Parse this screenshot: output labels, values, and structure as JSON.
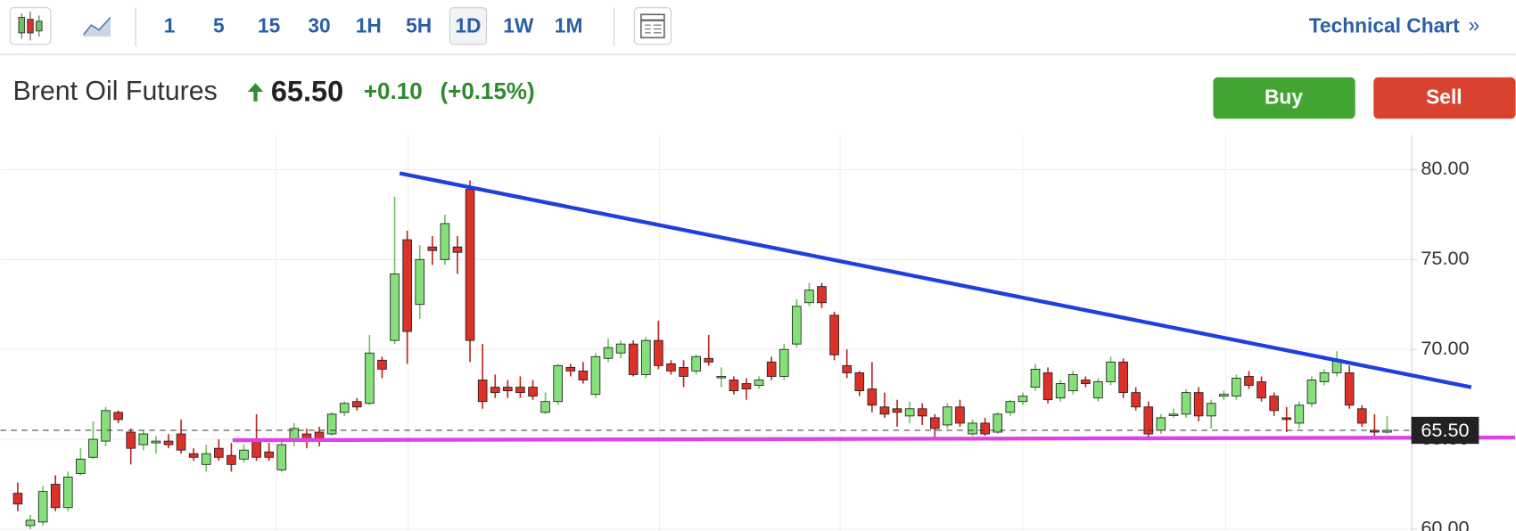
{
  "toolbar": {
    "intervals": [
      "1",
      "5",
      "15",
      "30",
      "1H",
      "5H",
      "1D",
      "1W",
      "1M"
    ],
    "active_interval": "1D",
    "technical_chart": "Technical Chart",
    "chevron": "»"
  },
  "header": {
    "name": "Brent Oil Futures",
    "price": "65.50",
    "change": "+0.10",
    "change_pct": "(+0.15%)",
    "buy": "Buy",
    "sell": "Sell"
  },
  "chart_data": {
    "type": "candlestick",
    "up_color": "#86e07a",
    "down_color": "#dc3128",
    "ylim": [
      59.9,
      81.65
    ],
    "yticks": [
      {
        "value": 60,
        "label": "60.00"
      },
      {
        "value": 65,
        "label": "65.00"
      },
      {
        "value": 70,
        "label": "70.00"
      },
      {
        "value": 75,
        "label": "75.00"
      },
      {
        "value": 80,
        "label": "80.00"
      }
    ],
    "grid": true,
    "last_price": {
      "value": 65.5,
      "label": "65.50"
    },
    "trendlines": [
      {
        "color": "#1f3fe0",
        "x": [
          30.4,
          115.7
        ],
        "y": [
          79.8,
          67.9
        ]
      },
      {
        "color": "#e040e8",
        "x": [
          17.1,
          119.2
        ],
        "y": [
          64.95,
          65.1
        ]
      }
    ],
    "ohlc": [
      [
        62.0,
        62.6,
        61.0,
        61.4
      ],
      [
        60.2,
        60.8,
        60.0,
        60.5
      ],
      [
        60.4,
        62.4,
        60.2,
        62.1
      ],
      [
        62.5,
        63.0,
        61.0,
        61.2
      ],
      [
        61.2,
        63.2,
        61.0,
        62.9
      ],
      [
        63.1,
        64.5,
        63.0,
        63.9
      ],
      [
        64.0,
        66.0,
        63.9,
        65.0
      ],
      [
        64.9,
        66.8,
        64.6,
        66.6
      ],
      [
        66.5,
        66.6,
        65.9,
        66.1
      ],
      [
        65.4,
        65.6,
        63.6,
        64.5
      ],
      [
        64.7,
        65.5,
        64.4,
        65.3
      ],
      [
        64.8,
        65.2,
        64.2,
        64.9
      ],
      [
        64.9,
        65.3,
        64.5,
        64.7
      ],
      [
        65.3,
        66.1,
        64.2,
        64.4
      ],
      [
        64.2,
        64.5,
        63.8,
        64.0
      ],
      [
        63.6,
        64.7,
        63.2,
        64.2
      ],
      [
        64.5,
        65.0,
        63.8,
        64.0
      ],
      [
        64.1,
        64.8,
        63.2,
        63.6
      ],
      [
        63.9,
        64.7,
        63.7,
        64.4
      ],
      [
        64.9,
        66.4,
        63.8,
        64.0
      ],
      [
        64.3,
        64.8,
        63.8,
        64.0
      ],
      [
        63.3,
        65.0,
        63.2,
        64.7
      ],
      [
        64.9,
        65.9,
        64.6,
        65.6
      ],
      [
        65.3,
        65.6,
        64.5,
        65.0
      ],
      [
        65.4,
        65.7,
        64.6,
        64.9
      ],
      [
        65.3,
        66.5,
        65.2,
        66.4
      ],
      [
        66.5,
        67.1,
        66.3,
        67.0
      ],
      [
        67.1,
        67.3,
        66.6,
        66.8
      ],
      [
        67.0,
        70.8,
        66.9,
        69.8
      ],
      [
        69.4,
        69.6,
        68.4,
        68.9
      ],
      [
        70.5,
        78.5,
        70.3,
        74.2
      ],
      [
        76.1,
        76.6,
        69.2,
        71.0
      ],
      [
        72.5,
        75.8,
        71.7,
        75.0
      ],
      [
        75.7,
        76.3,
        74.7,
        75.5
      ],
      [
        75.0,
        77.5,
        74.7,
        77.0
      ],
      [
        75.7,
        76.3,
        74.2,
        75.4
      ],
      [
        78.9,
        79.4,
        69.3,
        70.5
      ],
      [
        68.3,
        70.3,
        66.7,
        67.1
      ],
      [
        67.9,
        68.6,
        67.3,
        67.6
      ],
      [
        67.9,
        68.3,
        67.3,
        67.7
      ],
      [
        67.9,
        68.5,
        67.3,
        67.6
      ],
      [
        67.9,
        68.3,
        67.2,
        67.4
      ],
      [
        66.5,
        67.6,
        66.4,
        67.1
      ],
      [
        67.1,
        69.2,
        66.9,
        69.1
      ],
      [
        69.0,
        69.2,
        68.5,
        68.8
      ],
      [
        68.8,
        69.3,
        68.1,
        68.3
      ],
      [
        67.5,
        69.8,
        67.3,
        69.6
      ],
      [
        69.5,
        70.6,
        69.3,
        70.1
      ],
      [
        69.8,
        70.5,
        69.5,
        70.3
      ],
      [
        70.3,
        70.5,
        68.5,
        68.6
      ],
      [
        68.6,
        70.7,
        68.4,
        70.5
      ],
      [
        70.5,
        71.6,
        68.9,
        69.1
      ],
      [
        69.2,
        69.4,
        68.6,
        68.8
      ],
      [
        69.0,
        69.4,
        67.9,
        68.5
      ],
      [
        68.8,
        69.7,
        68.6,
        69.6
      ],
      [
        69.5,
        70.8,
        69.1,
        69.3
      ],
      [
        68.5,
        69.0,
        67.9,
        68.5
      ],
      [
        68.3,
        68.5,
        67.5,
        67.7
      ],
      [
        68.1,
        68.4,
        67.2,
        67.8
      ],
      [
        68.0,
        68.5,
        67.8,
        68.3
      ],
      [
        69.3,
        69.6,
        68.3,
        68.5
      ],
      [
        68.5,
        70.3,
        68.3,
        70.0
      ],
      [
        70.3,
        72.8,
        70.1,
        72.4
      ],
      [
        72.6,
        73.7,
        72.4,
        73.3
      ],
      [
        73.5,
        73.7,
        72.3,
        72.6
      ],
      [
        71.9,
        72.1,
        69.4,
        69.7
      ],
      [
        69.1,
        70.0,
        68.4,
        68.7
      ],
      [
        68.7,
        68.8,
        67.4,
        67.7
      ],
      [
        67.8,
        69.3,
        66.5,
        66.9
      ],
      [
        66.8,
        67.6,
        66.2,
        66.4
      ],
      [
        66.7,
        67.2,
        65.7,
        66.5
      ],
      [
        66.3,
        67.1,
        65.9,
        66.7
      ],
      [
        66.7,
        67.0,
        65.8,
        66.3
      ],
      [
        66.2,
        66.4,
        65.1,
        65.6
      ],
      [
        65.8,
        67.0,
        65.6,
        66.8
      ],
      [
        66.8,
        67.2,
        65.7,
        65.9
      ],
      [
        65.3,
        66.1,
        65.2,
        65.9
      ],
      [
        65.9,
        66.2,
        65.2,
        65.3
      ],
      [
        65.4,
        66.5,
        65.3,
        66.4
      ],
      [
        66.5,
        67.2,
        66.3,
        67.1
      ],
      [
        67.1,
        67.6,
        66.9,
        67.4
      ],
      [
        67.9,
        69.2,
        67.7,
        68.9
      ],
      [
        68.7,
        69.0,
        67.0,
        67.2
      ],
      [
        67.3,
        68.3,
        67.1,
        68.1
      ],
      [
        67.7,
        68.8,
        67.5,
        68.6
      ],
      [
        68.3,
        68.5,
        67.9,
        68.1
      ],
      [
        67.3,
        68.4,
        67.1,
        68.2
      ],
      [
        68.2,
        69.6,
        68.0,
        69.3
      ],
      [
        69.3,
        69.5,
        67.3,
        67.6
      ],
      [
        67.6,
        67.9,
        66.6,
        66.8
      ],
      [
        66.8,
        67.1,
        65.0,
        65.3
      ],
      [
        65.5,
        66.4,
        65.3,
        66.2
      ],
      [
        66.4,
        66.7,
        66.2,
        66.4
      ],
      [
        66.4,
        67.8,
        66.2,
        67.6
      ],
      [
        67.6,
        67.9,
        66.0,
        66.3
      ],
      [
        66.3,
        67.2,
        65.6,
        67.0
      ],
      [
        67.4,
        67.7,
        67.2,
        67.5
      ],
      [
        67.4,
        68.6,
        67.2,
        68.4
      ],
      [
        68.5,
        68.8,
        67.8,
        68.0
      ],
      [
        68.2,
        68.5,
        67.1,
        67.3
      ],
      [
        67.4,
        67.6,
        66.3,
        66.6
      ],
      [
        66.2,
        66.8,
        65.4,
        66.1
      ],
      [
        65.9,
        67.1,
        65.6,
        66.9
      ],
      [
        67.0,
        68.5,
        66.8,
        68.3
      ],
      [
        68.2,
        68.9,
        68.0,
        68.7
      ],
      [
        68.7,
        69.9,
        68.5,
        69.4
      ],
      [
        68.7,
        69.1,
        66.7,
        66.9
      ],
      [
        66.7,
        66.9,
        65.7,
        65.9
      ],
      [
        65.5,
        66.4,
        65.2,
        65.4
      ],
      [
        65.4,
        66.3,
        65.3,
        65.5
      ]
    ]
  }
}
